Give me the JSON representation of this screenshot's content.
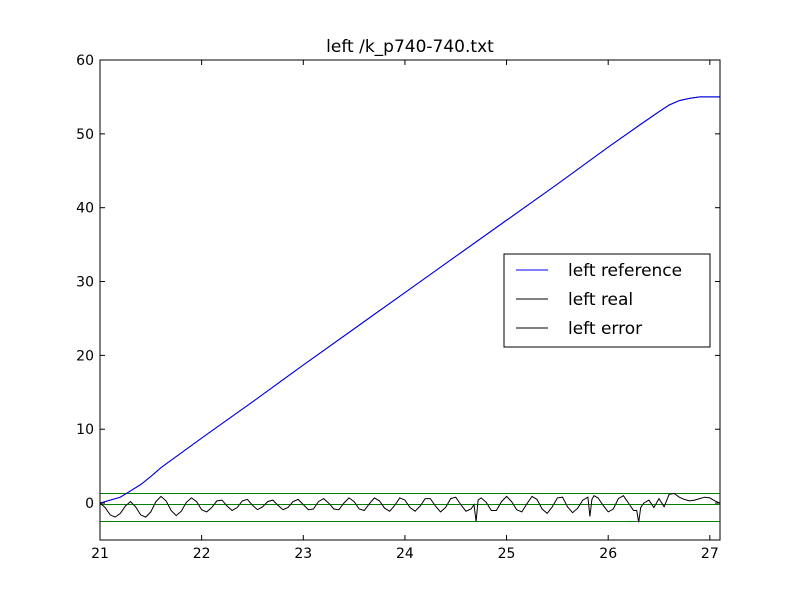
{
  "chart_data": {
    "type": "line",
    "title": "left /k_p740-740.txt",
    "xlabel": "",
    "ylabel": "",
    "xlim": [
      21,
      27.1
    ],
    "ylim": [
      -5,
      60
    ],
    "xticks": [
      21,
      22,
      23,
      24,
      25,
      26,
      27
    ],
    "yticks": [
      0,
      10,
      20,
      30,
      40,
      50,
      60
    ],
    "grid": false,
    "legend_position": "center-right",
    "series": [
      {
        "name": "left reference",
        "color": "#0000ff",
        "x": [
          21.0,
          21.2,
          21.4,
          21.5,
          21.6,
          21.8,
          22.0,
          22.5,
          23.0,
          23.5,
          24.0,
          24.5,
          25.0,
          25.5,
          26.0,
          26.3,
          26.5,
          26.6,
          26.7,
          26.8,
          26.9,
          27.0,
          27.1
        ],
        "y": [
          0.0,
          0.8,
          2.5,
          3.6,
          4.8,
          6.8,
          8.8,
          13.7,
          18.7,
          23.6,
          28.5,
          33.4,
          38.3,
          43.2,
          48.2,
          51.1,
          53.0,
          53.9,
          54.5,
          54.8,
          55.0,
          55.0,
          55.0
        ]
      },
      {
        "name": "left real",
        "color": "#000000",
        "x": [
          21.0,
          21.2,
          21.4,
          21.5,
          21.6,
          21.8,
          22.0,
          22.5,
          23.0,
          23.5,
          24.0,
          24.5,
          25.0,
          25.5,
          26.0,
          26.3,
          26.5,
          26.6,
          26.7,
          26.8,
          26.9,
          27.0,
          27.1
        ],
        "y": [
          0.0,
          0.8,
          2.5,
          3.6,
          4.8,
          6.8,
          8.8,
          13.7,
          18.7,
          23.6,
          28.5,
          33.4,
          38.3,
          43.2,
          48.2,
          51.1,
          53.0,
          53.9,
          54.5,
          54.8,
          55.0,
          55.0,
          55.0
        ]
      },
      {
        "name": "left error",
        "color": "#000000",
        "x": [
          21.0,
          21.05,
          21.1,
          21.15,
          21.2,
          21.25,
          21.3,
          21.35,
          21.4,
          21.45,
          21.5,
          21.55,
          21.6,
          21.65,
          21.7,
          21.75,
          21.8,
          21.85,
          21.9,
          21.95,
          22.0,
          22.05,
          22.1,
          22.15,
          22.2,
          22.25,
          22.3,
          22.35,
          22.4,
          22.45,
          22.5,
          22.55,
          22.6,
          22.65,
          22.7,
          22.75,
          22.8,
          22.85,
          22.9,
          22.95,
          23.0,
          23.05,
          23.1,
          23.15,
          23.2,
          23.25,
          23.3,
          23.35,
          23.4,
          23.45,
          23.5,
          23.55,
          23.6,
          23.65,
          23.7,
          23.75,
          23.8,
          23.85,
          23.9,
          23.95,
          24.0,
          24.05,
          24.1,
          24.15,
          24.2,
          24.25,
          24.3,
          24.35,
          24.4,
          24.45,
          24.5,
          24.55,
          24.6,
          24.65,
          24.68,
          24.7,
          24.72,
          24.75,
          24.8,
          24.85,
          24.9,
          24.95,
          25.0,
          25.05,
          25.1,
          25.15,
          25.2,
          25.25,
          25.3,
          25.35,
          25.4,
          25.45,
          25.5,
          25.55,
          25.6,
          25.65,
          25.7,
          25.75,
          25.8,
          25.82,
          25.84,
          25.86,
          25.9,
          25.95,
          26.0,
          26.05,
          26.1,
          26.15,
          26.2,
          26.25,
          26.28,
          26.3,
          26.32,
          26.35,
          26.4,
          26.45,
          26.5,
          26.55,
          26.6,
          26.65,
          26.7,
          26.75,
          26.8,
          26.85,
          26.9,
          26.95,
          27.0,
          27.05,
          27.1
        ],
        "y": [
          0.0,
          -0.6,
          -1.6,
          -1.9,
          -1.4,
          -0.4,
          0.2,
          -0.5,
          -1.6,
          -1.9,
          -1.2,
          0.2,
          0.9,
          0.3,
          -1.0,
          -1.7,
          -1.1,
          0.1,
          0.7,
          0.2,
          -0.9,
          -1.2,
          -0.6,
          0.3,
          0.4,
          -0.4,
          -1.0,
          -0.6,
          0.3,
          0.5,
          -0.3,
          -0.9,
          -0.5,
          0.2,
          0.4,
          -0.3,
          -0.9,
          -0.6,
          0.2,
          0.5,
          -0.2,
          -0.9,
          -0.8,
          0.2,
          0.6,
          0.0,
          -0.8,
          -0.9,
          0.0,
          0.7,
          0.2,
          -0.8,
          -1.0,
          -0.1,
          0.7,
          0.3,
          -0.7,
          -1.1,
          -0.3,
          0.7,
          0.4,
          -0.6,
          -1.1,
          -0.4,
          0.6,
          0.6,
          -0.4,
          -1.2,
          -0.6,
          0.6,
          0.8,
          -0.2,
          -1.1,
          -0.8,
          -0.2,
          -2.5,
          0.4,
          0.7,
          0.1,
          -1.0,
          -1.0,
          0.2,
          0.9,
          0.2,
          -0.9,
          -1.2,
          -0.1,
          0.9,
          0.5,
          -0.8,
          -1.4,
          -0.5,
          0.7,
          0.8,
          -0.5,
          -1.3,
          -0.7,
          0.4,
          0.8,
          -1.8,
          0.5,
          1.0,
          0.7,
          -0.3,
          -1.2,
          -0.8,
          0.6,
          1.0,
          0.0,
          -1.0,
          -1.0,
          -2.6,
          -0.6,
          0.0,
          0.4,
          -0.6,
          0.6,
          -0.5,
          1.2,
          1.3,
          0.8,
          0.5,
          0.3,
          0.4,
          0.6,
          0.8,
          0.7,
          0.3,
          0.0
        ]
      }
    ],
    "horizontal_lines": [
      {
        "y": 1.3,
        "color": "#008000"
      },
      {
        "y": -0.2,
        "color": "#008000"
      },
      {
        "y": -2.5,
        "color": "#008000"
      }
    ]
  }
}
